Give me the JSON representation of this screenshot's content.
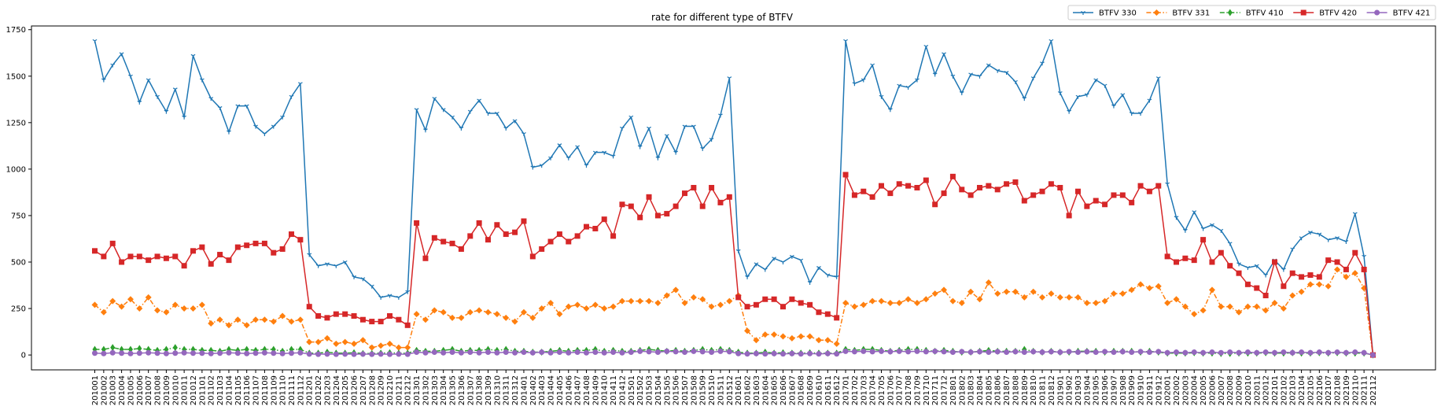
{
  "chart_data": {
    "type": "line",
    "title": "rate for different type of BTFV",
    "xlabel": "",
    "ylabel": "",
    "ylim": [
      -80,
      1770
    ],
    "yticks": [
      0,
      250,
      500,
      750,
      1000,
      1250,
      1500,
      1750
    ],
    "legend_position": "top-right",
    "grid": false,
    "x": [
      "201001",
      "201002",
      "201003",
      "201004",
      "201005",
      "201006",
      "201007",
      "201008",
      "201009",
      "201010",
      "201011",
      "201012",
      "201101",
      "201102",
      "201103",
      "201104",
      "201105",
      "201106",
      "201107",
      "201108",
      "201109",
      "201110",
      "201111",
      "201112",
      "201201",
      "201202",
      "201203",
      "201204",
      "201205",
      "201206",
      "201207",
      "201208",
      "201209",
      "201210",
      "201211",
      "201212",
      "201301",
      "201302",
      "201303",
      "201304",
      "201305",
      "201306",
      "201307",
      "201308",
      "201309",
      "201310",
      "201311",
      "201312",
      "201401",
      "201402",
      "201403",
      "201404",
      "201405",
      "201406",
      "201407",
      "201408",
      "201409",
      "201410",
      "201411",
      "201412",
      "201501",
      "201502",
      "201503",
      "201504",
      "201505",
      "201506",
      "201507",
      "201508",
      "201509",
      "201510",
      "201511",
      "201512",
      "201601",
      "201602",
      "201603",
      "201604",
      "201605",
      "201606",
      "201607",
      "201608",
      "201609",
      "201610",
      "201611",
      "201612",
      "201701",
      "201702",
      "201703",
      "201704",
      "201705",
      "201706",
      "201707",
      "201708",
      "201709",
      "201710",
      "201711",
      "201712",
      "201801",
      "201802",
      "201803",
      "201804",
      "201805",
      "201806",
      "201807",
      "201808",
      "201809",
      "201810",
      "201811",
      "201812",
      "201901",
      "201902",
      "201903",
      "201904",
      "201905",
      "201906",
      "201907",
      "201908",
      "201909",
      "201910",
      "201911",
      "201912",
      "202001",
      "202002",
      "202003",
      "202004",
      "202005",
      "202006",
      "202007",
      "202008",
      "202009",
      "202010",
      "202011",
      "202012",
      "202101",
      "202102",
      "202103",
      "202104",
      "202105",
      "202106",
      "202107",
      "202108",
      "202109",
      "202110",
      "202111",
      "202112"
    ],
    "series": [
      {
        "name": "BTFV 330",
        "color": "#1f77b4",
        "marker": "tri_down",
        "dashed": false,
        "values": [
          1690,
          1480,
          1560,
          1620,
          1500,
          1360,
          1480,
          1390,
          1310,
          1430,
          1280,
          1610,
          1480,
          1380,
          1330,
          1200,
          1340,
          1340,
          1230,
          1190,
          1230,
          1280,
          1390,
          1460,
          540,
          480,
          490,
          480,
          500,
          420,
          410,
          370,
          310,
          320,
          310,
          340,
          1320,
          1210,
          1380,
          1320,
          1280,
          1220,
          1310,
          1370,
          1300,
          1300,
          1220,
          1260,
          1190,
          1010,
          1020,
          1060,
          1130,
          1060,
          1120,
          1020,
          1090,
          1090,
          1070,
          1220,
          1280,
          1120,
          1220,
          1060,
          1180,
          1090,
          1230,
          1230,
          1110,
          1160,
          1290,
          1490,
          560,
          420,
          490,
          460,
          520,
          500,
          530,
          510,
          390,
          470,
          430,
          420,
          1690,
          1460,
          1480,
          1560,
          1390,
          1320,
          1450,
          1440,
          1480,
          1660,
          1510,
          1620,
          1500,
          1410,
          1510,
          1500,
          1560,
          1530,
          1520,
          1470,
          1380,
          1490,
          1570,
          1690,
          1410,
          1310,
          1390,
          1400,
          1480,
          1450,
          1340,
          1400,
          1300,
          1300,
          1370,
          1490,
          920,
          740,
          670,
          770,
          680,
          700,
          670,
          600,
          490,
          470,
          480,
          430,
          510,
          460,
          570,
          630,
          660,
          650,
          620,
          630,
          610,
          760,
          530,
          0
        ]
      },
      {
        "name": "BTFV 331",
        "color": "#ff7f0e",
        "marker": "diamond",
        "dashed": true,
        "values": [
          270,
          230,
          290,
          260,
          300,
          250,
          310,
          240,
          230,
          270,
          250,
          250,
          270,
          170,
          190,
          160,
          190,
          160,
          190,
          190,
          180,
          210,
          180,
          190,
          70,
          70,
          90,
          60,
          70,
          60,
          80,
          40,
          50,
          60,
          40,
          40,
          220,
          190,
          240,
          230,
          200,
          200,
          230,
          240,
          230,
          220,
          200,
          180,
          230,
          200,
          250,
          280,
          220,
          260,
          270,
          250,
          270,
          250,
          260,
          290,
          290,
          290,
          290,
          280,
          320,
          350,
          280,
          310,
          300,
          260,
          270,
          290,
          320,
          130,
          80,
          110,
          110,
          100,
          90,
          100,
          100,
          80,
          80,
          60,
          280,
          260,
          270,
          290,
          290,
          280,
          280,
          300,
          280,
          300,
          330,
          350,
          290,
          280,
          340,
          300,
          390,
          330,
          340,
          340,
          310,
          340,
          310,
          330,
          310,
          310,
          310,
          280,
          280,
          290,
          330,
          330,
          350,
          380,
          360,
          370,
          280,
          300,
          260,
          220,
          240,
          350,
          260,
          260,
          230,
          260,
          260,
          240,
          280,
          250,
          320,
          340,
          380,
          380,
          370,
          460,
          420,
          440,
          360,
          0
        ]
      },
      {
        "name": "BTFV 410",
        "color": "#2ca02c",
        "marker": "thin_diamond",
        "dashed": true,
        "values": [
          30,
          30,
          40,
          30,
          30,
          35,
          30,
          25,
          30,
          40,
          30,
          30,
          25,
          25,
          20,
          30,
          25,
          30,
          25,
          30,
          30,
          20,
          30,
          30,
          10,
          10,
          15,
          10,
          10,
          12,
          8,
          8,
          10,
          12,
          10,
          10,
          25,
          20,
          20,
          25,
          30,
          20,
          25,
          25,
          30,
          25,
          30,
          20,
          20,
          15,
          15,
          20,
          25,
          20,
          25,
          25,
          30,
          20,
          25,
          20,
          20,
          25,
          30,
          25,
          20,
          25,
          20,
          25,
          30,
          25,
          30,
          25,
          15,
          10,
          10,
          15,
          10,
          12,
          10,
          10,
          12,
          10,
          10,
          10,
          30,
          25,
          30,
          30,
          25,
          20,
          25,
          30,
          30,
          25,
          20,
          25,
          20,
          15,
          15,
          20,
          25,
          20,
          20,
          20,
          30,
          20,
          15,
          20,
          15,
          15,
          20,
          20,
          20,
          15,
          20,
          20,
          20,
          15,
          20,
          15,
          10,
          10,
          10,
          12,
          10,
          10,
          8,
          8,
          10,
          10,
          10,
          12,
          10,
          10,
          12,
          10,
          10,
          12,
          10,
          12,
          10,
          10,
          10,
          0
        ]
      },
      {
        "name": "BTFV 420",
        "color": "#d62728",
        "marker": "square",
        "dashed": false,
        "values": [
          560,
          530,
          600,
          500,
          530,
          530,
          510,
          530,
          520,
          530,
          480,
          560,
          580,
          490,
          540,
          510,
          580,
          590,
          600,
          600,
          550,
          570,
          650,
          620,
          260,
          210,
          200,
          220,
          220,
          210,
          190,
          180,
          180,
          210,
          190,
          160,
          710,
          520,
          630,
          610,
          600,
          570,
          640,
          710,
          620,
          700,
          650,
          660,
          720,
          530,
          570,
          610,
          650,
          610,
          640,
          690,
          680,
          730,
          640,
          810,
          800,
          740,
          850,
          750,
          760,
          800,
          870,
          900,
          800,
          900,
          820,
          850,
          310,
          260,
          270,
          300,
          300,
          260,
          300,
          280,
          270,
          230,
          220,
          200,
          970,
          860,
          880,
          850,
          910,
          870,
          920,
          910,
          900,
          940,
          810,
          870,
          960,
          890,
          860,
          900,
          910,
          890,
          920,
          930,
          830,
          860,
          880,
          920,
          900,
          750,
          880,
          800,
          830,
          810,
          860,
          860,
          820,
          910,
          880,
          910,
          530,
          500,
          520,
          510,
          620,
          500,
          550,
          480,
          440,
          380,
          360,
          320,
          500,
          370,
          440,
          420,
          430,
          420,
          510,
          500,
          460,
          550,
          460,
          0
        ]
      },
      {
        "name": "BTFV 421",
        "color": "#9467bd",
        "marker": "circle",
        "dashed": false,
        "values": [
          10,
          8,
          12,
          10,
          8,
          10,
          12,
          10,
          8,
          10,
          12,
          10,
          10,
          8,
          10,
          12,
          10,
          8,
          10,
          12,
          10,
          8,
          10,
          12,
          5,
          4,
          5,
          4,
          5,
          4,
          5,
          4,
          5,
          4,
          5,
          4,
          15,
          12,
          15,
          12,
          15,
          12,
          15,
          12,
          15,
          12,
          15,
          12,
          15,
          12,
          15,
          12,
          15,
          12,
          15,
          12,
          15,
          12,
          15,
          12,
          15,
          20,
          18,
          15,
          20,
          18,
          15,
          20,
          18,
          15,
          20,
          18,
          8,
          6,
          8,
          6,
          8,
          6,
          8,
          6,
          8,
          6,
          8,
          6,
          20,
          18,
          20,
          18,
          20,
          18,
          20,
          18,
          20,
          18,
          20,
          18,
          15,
          18,
          15,
          18,
          15,
          18,
          15,
          18,
          15,
          18,
          15,
          18,
          15,
          18,
          15,
          18,
          15,
          18,
          15,
          18,
          15,
          18,
          15,
          18,
          12,
          15,
          12,
          15,
          12,
          15,
          12,
          15,
          12,
          15,
          12,
          15,
          12,
          15,
          12,
          15,
          12,
          15,
          12,
          15,
          12,
          15,
          12,
          0
        ]
      }
    ]
  }
}
